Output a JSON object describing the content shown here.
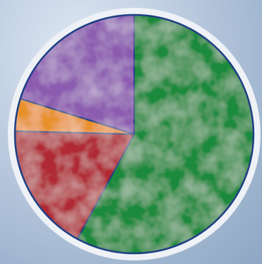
{
  "chart_data": {
    "type": "pie",
    "start_angle_deg": 0,
    "direction": "clockwise",
    "slices": [
      {
        "value": 57.9,
        "color": "#1f8a3c"
      },
      {
        "value": 17.5,
        "color": "#b02a35"
      },
      {
        "value": 4.4,
        "color": "#e8912b"
      },
      {
        "value": 20.2,
        "color": "#8c5bb0"
      }
    ],
    "outline_color": "#1f3f84",
    "ring_color": "#eef1f6"
  }
}
